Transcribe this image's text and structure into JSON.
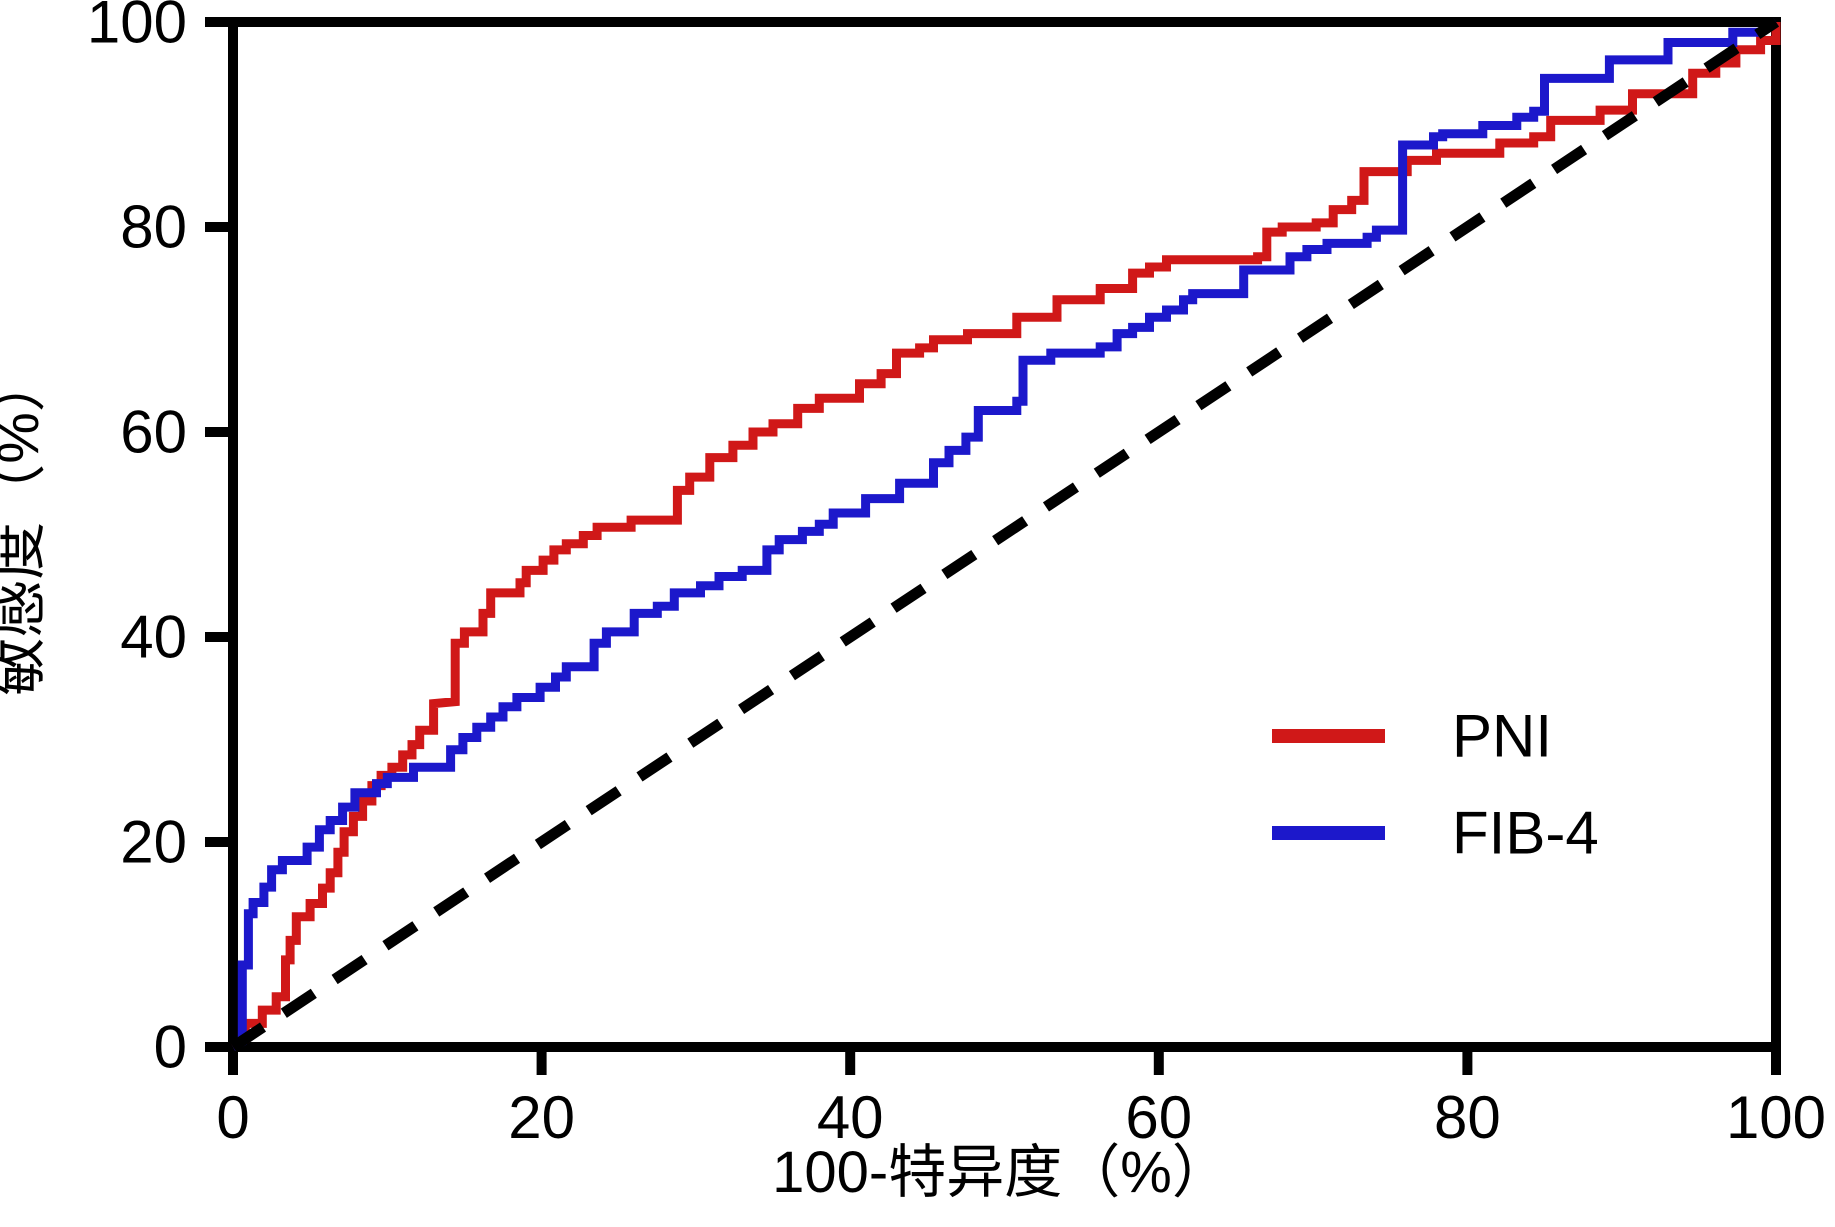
{
  "chart_data": {
    "type": "line",
    "subtype": "roc-step-curves",
    "title": "",
    "xlabel": "100-特异度（%）",
    "ylabel": "敏感度（%）",
    "xlim": [
      0,
      100
    ],
    "ylim": [
      0,
      100
    ],
    "x_ticks": [
      0,
      20,
      40,
      60,
      80,
      100
    ],
    "y_ticks": [
      0,
      20,
      40,
      60,
      80,
      100
    ],
    "grid": false,
    "frame": "full-box",
    "axis_color": "#000000",
    "legend": {
      "position": "inside-lower-right",
      "entries": [
        {
          "label": "PNI",
          "color": "#d01818",
          "style": "solid"
        },
        {
          "label": "FIB-4",
          "color": "#1c18cb",
          "style": "solid"
        }
      ]
    },
    "series": [
      {
        "name": "PNI",
        "color": "#d01818",
        "style": "solid",
        "points": [
          [
            0,
            0
          ],
          [
            0.8,
            0.7
          ],
          [
            0.8,
            2.3
          ],
          [
            1.9,
            2.3
          ],
          [
            1.9,
            3.6
          ],
          [
            2.8,
            3.6
          ],
          [
            2.8,
            4.9
          ],
          [
            3.4,
            4.9
          ],
          [
            3.4,
            8.5
          ],
          [
            3.7,
            8.5
          ],
          [
            3.7,
            10.4
          ],
          [
            4.1,
            10.4
          ],
          [
            4.1,
            12.7
          ],
          [
            5,
            12.7
          ],
          [
            5,
            14
          ],
          [
            5.8,
            14
          ],
          [
            5.8,
            15.5
          ],
          [
            6.3,
            15.5
          ],
          [
            6.3,
            17
          ],
          [
            6.8,
            17
          ],
          [
            6.8,
            19
          ],
          [
            7.2,
            19
          ],
          [
            7.2,
            21
          ],
          [
            7.8,
            21
          ],
          [
            7.8,
            22.5
          ],
          [
            8.4,
            22.5
          ],
          [
            8.4,
            24
          ],
          [
            9,
            24
          ],
          [
            9,
            25.5
          ],
          [
            9.6,
            25.5
          ],
          [
            9.6,
            26.5
          ],
          [
            10.3,
            26.5
          ],
          [
            10.3,
            27.3
          ],
          [
            11,
            27.3
          ],
          [
            11,
            28.5
          ],
          [
            11.6,
            28.5
          ],
          [
            11.6,
            29.5
          ],
          [
            12.1,
            29.5
          ],
          [
            12.1,
            30.9
          ],
          [
            13,
            30.9
          ],
          [
            13,
            33.5
          ],
          [
            14.4,
            33.7
          ],
          [
            14.4,
            39.4
          ],
          [
            15,
            39.4
          ],
          [
            15,
            40.5
          ],
          [
            16.2,
            40.5
          ],
          [
            16.2,
            42.3
          ],
          [
            16.7,
            42.3
          ],
          [
            16.7,
            44.3
          ],
          [
            18.6,
            44.3
          ],
          [
            18.6,
            45.3
          ],
          [
            19,
            45.3
          ],
          [
            19,
            46.5
          ],
          [
            20.1,
            46.5
          ],
          [
            20.1,
            47.5
          ],
          [
            20.8,
            47.5
          ],
          [
            20.8,
            48.5
          ],
          [
            21.6,
            48.5
          ],
          [
            21.6,
            49.1
          ],
          [
            22.7,
            49.1
          ],
          [
            22.7,
            49.9
          ],
          [
            23.6,
            49.9
          ],
          [
            23.6,
            50.7
          ],
          [
            25.8,
            50.7
          ],
          [
            25.8,
            51.4
          ],
          [
            28.8,
            51.4
          ],
          [
            28.8,
            54.3
          ],
          [
            29.6,
            54.3
          ],
          [
            29.6,
            55.6
          ],
          [
            30.9,
            55.6
          ],
          [
            30.9,
            57.5
          ],
          [
            32.4,
            57.5
          ],
          [
            32.4,
            58.7
          ],
          [
            33.7,
            58.7
          ],
          [
            33.7,
            60
          ],
          [
            35,
            60
          ],
          [
            35,
            60.8
          ],
          [
            36.6,
            60.8
          ],
          [
            36.6,
            62.3
          ],
          [
            38,
            62.3
          ],
          [
            38,
            63.3
          ],
          [
            40.6,
            63.3
          ],
          [
            40.6,
            64.7
          ],
          [
            42,
            64.7
          ],
          [
            42,
            65.7
          ],
          [
            43,
            65.7
          ],
          [
            43,
            67.7
          ],
          [
            44.5,
            67.7
          ],
          [
            44.5,
            68.2
          ],
          [
            45.4,
            68.2
          ],
          [
            45.4,
            69
          ],
          [
            47.6,
            69
          ],
          [
            47.6,
            69.6
          ],
          [
            50.8,
            69.6
          ],
          [
            50.8,
            71.2
          ],
          [
            53.4,
            71.2
          ],
          [
            53.4,
            72.9
          ],
          [
            56.2,
            72.9
          ],
          [
            56.2,
            74
          ],
          [
            58.3,
            74
          ],
          [
            58.3,
            75.5
          ],
          [
            59.4,
            75.5
          ],
          [
            59.4,
            76.1
          ],
          [
            60.5,
            76.1
          ],
          [
            60.5,
            76.8
          ],
          [
            66.4,
            76.8
          ],
          [
            66.4,
            77.1
          ],
          [
            67,
            77.1
          ],
          [
            67,
            79.5
          ],
          [
            68,
            79.5
          ],
          [
            68,
            80
          ],
          [
            70.2,
            80
          ],
          [
            70.2,
            80.4
          ],
          [
            71.3,
            80.4
          ],
          [
            71.3,
            81.7
          ],
          [
            72.5,
            81.7
          ],
          [
            72.5,
            82.6
          ],
          [
            73.3,
            82.6
          ],
          [
            73.3,
            85.4
          ],
          [
            76.1,
            85.4
          ],
          [
            76.1,
            86.5
          ],
          [
            78,
            86.5
          ],
          [
            78,
            87.2
          ],
          [
            82.1,
            87.2
          ],
          [
            82.1,
            88.2
          ],
          [
            84.3,
            88.2
          ],
          [
            84.3,
            88.8
          ],
          [
            85.4,
            88.8
          ],
          [
            85.4,
            90.4
          ],
          [
            88.6,
            90.4
          ],
          [
            88.6,
            91.4
          ],
          [
            90.7,
            91.4
          ],
          [
            90.7,
            93
          ],
          [
            94.6,
            93
          ],
          [
            94.6,
            95
          ],
          [
            96.1,
            95
          ],
          [
            96.1,
            96
          ],
          [
            97.4,
            96
          ],
          [
            97.4,
            97.3
          ],
          [
            99,
            97.3
          ],
          [
            99,
            98.2
          ],
          [
            100,
            98.2
          ],
          [
            100,
            100
          ]
        ]
      },
      {
        "name": "FIB-4",
        "color": "#1c18cb",
        "style": "solid",
        "points": [
          [
            0,
            0
          ],
          [
            0.6,
            0.5
          ],
          [
            0.6,
            8
          ],
          [
            1,
            8
          ],
          [
            1,
            13
          ],
          [
            1.3,
            13
          ],
          [
            1.3,
            14.1
          ],
          [
            2,
            14.1
          ],
          [
            2,
            15.6
          ],
          [
            2.5,
            15.6
          ],
          [
            2.5,
            17.3
          ],
          [
            3.2,
            17.3
          ],
          [
            3.2,
            18.2
          ],
          [
            4.8,
            18.2
          ],
          [
            4.8,
            19.5
          ],
          [
            5.6,
            19.5
          ],
          [
            5.6,
            21.2
          ],
          [
            6.3,
            21.2
          ],
          [
            6.3,
            22.1
          ],
          [
            7.1,
            22.1
          ],
          [
            7.1,
            23.4
          ],
          [
            7.9,
            23.4
          ],
          [
            7.9,
            24.8
          ],
          [
            9.3,
            24.8
          ],
          [
            9.3,
            25.7
          ],
          [
            10,
            25.7
          ],
          [
            10,
            26.3
          ],
          [
            11.7,
            26.3
          ],
          [
            11.7,
            27.3
          ],
          [
            14.1,
            27.3
          ],
          [
            14.1,
            29
          ],
          [
            14.9,
            29
          ],
          [
            14.9,
            30.2
          ],
          [
            15.8,
            30.2
          ],
          [
            15.8,
            31.2
          ],
          [
            16.7,
            31.2
          ],
          [
            16.7,
            32.2
          ],
          [
            17.5,
            32.2
          ],
          [
            17.5,
            33.2
          ],
          [
            18.4,
            33.2
          ],
          [
            18.4,
            34.1
          ],
          [
            19.9,
            34.1
          ],
          [
            19.9,
            35.1
          ],
          [
            20.9,
            35.1
          ],
          [
            20.9,
            36.1
          ],
          [
            21.6,
            36.1
          ],
          [
            21.6,
            37.1
          ],
          [
            23.4,
            37.1
          ],
          [
            23.4,
            39.4
          ],
          [
            24.2,
            39.4
          ],
          [
            24.2,
            40.5
          ],
          [
            26,
            40.5
          ],
          [
            26,
            42.3
          ],
          [
            27.5,
            42.3
          ],
          [
            27.5,
            43
          ],
          [
            28.6,
            43
          ],
          [
            28.6,
            44.3
          ],
          [
            30.3,
            44.3
          ],
          [
            30.3,
            45
          ],
          [
            31.5,
            45
          ],
          [
            31.5,
            45.9
          ],
          [
            33,
            45.9
          ],
          [
            33,
            46.5
          ],
          [
            34.6,
            46.5
          ],
          [
            34.6,
            48.5
          ],
          [
            35.4,
            48.5
          ],
          [
            35.4,
            49.5
          ],
          [
            36.9,
            49.5
          ],
          [
            36.9,
            50.3
          ],
          [
            38,
            50.3
          ],
          [
            38,
            51
          ],
          [
            38.9,
            51
          ],
          [
            38.9,
            52.1
          ],
          [
            41,
            52.1
          ],
          [
            41,
            53.5
          ],
          [
            43.2,
            53.5
          ],
          [
            43.2,
            55
          ],
          [
            45.4,
            55
          ],
          [
            45.4,
            57
          ],
          [
            46.4,
            57
          ],
          [
            46.4,
            58.2
          ],
          [
            47.5,
            58.2
          ],
          [
            47.5,
            59.5
          ],
          [
            48.3,
            59.5
          ],
          [
            48.3,
            62.1
          ],
          [
            50.8,
            62.1
          ],
          [
            50.8,
            63
          ],
          [
            51.2,
            63
          ],
          [
            51.2,
            67
          ],
          [
            53,
            67
          ],
          [
            53,
            67.7
          ],
          [
            56.2,
            67.7
          ],
          [
            56.2,
            68.3
          ],
          [
            57.3,
            68.3
          ],
          [
            57.3,
            69.6
          ],
          [
            58.3,
            69.6
          ],
          [
            58.3,
            70.2
          ],
          [
            59.4,
            70.2
          ],
          [
            59.4,
            71.2
          ],
          [
            60.5,
            71.2
          ],
          [
            60.5,
            71.9
          ],
          [
            61.6,
            71.9
          ],
          [
            61.6,
            72.9
          ],
          [
            62.2,
            72.9
          ],
          [
            62.2,
            73.5
          ],
          [
            65.5,
            73.5
          ],
          [
            65.5,
            75.8
          ],
          [
            68.5,
            75.8
          ],
          [
            68.5,
            77.1
          ],
          [
            69.6,
            77.1
          ],
          [
            69.6,
            77.8
          ],
          [
            70.9,
            77.8
          ],
          [
            70.9,
            78.4
          ],
          [
            73.5,
            78.4
          ],
          [
            73.5,
            79
          ],
          [
            74.1,
            79
          ],
          [
            74.1,
            79.7
          ],
          [
            75.8,
            79.7
          ],
          [
            75.8,
            88
          ],
          [
            77.8,
            88
          ],
          [
            77.8,
            88.8
          ],
          [
            78.4,
            88.8
          ],
          [
            78.4,
            89.1
          ],
          [
            81,
            89.1
          ],
          [
            81,
            89.9
          ],
          [
            83.2,
            89.9
          ],
          [
            83.2,
            90.7
          ],
          [
            84.3,
            90.7
          ],
          [
            84.3,
            91.3
          ],
          [
            85,
            91.3
          ],
          [
            85,
            94.5
          ],
          [
            89.2,
            94.5
          ],
          [
            89.2,
            96.3
          ],
          [
            93,
            96.3
          ],
          [
            93,
            98
          ],
          [
            97.2,
            98
          ],
          [
            97.2,
            99
          ],
          [
            99,
            99
          ],
          [
            100,
            100
          ]
        ]
      },
      {
        "name": "reference-diagonal",
        "color": "#000000",
        "style": "dashed",
        "points": [
          [
            0,
            0
          ],
          [
            100,
            100
          ]
        ]
      }
    ]
  }
}
